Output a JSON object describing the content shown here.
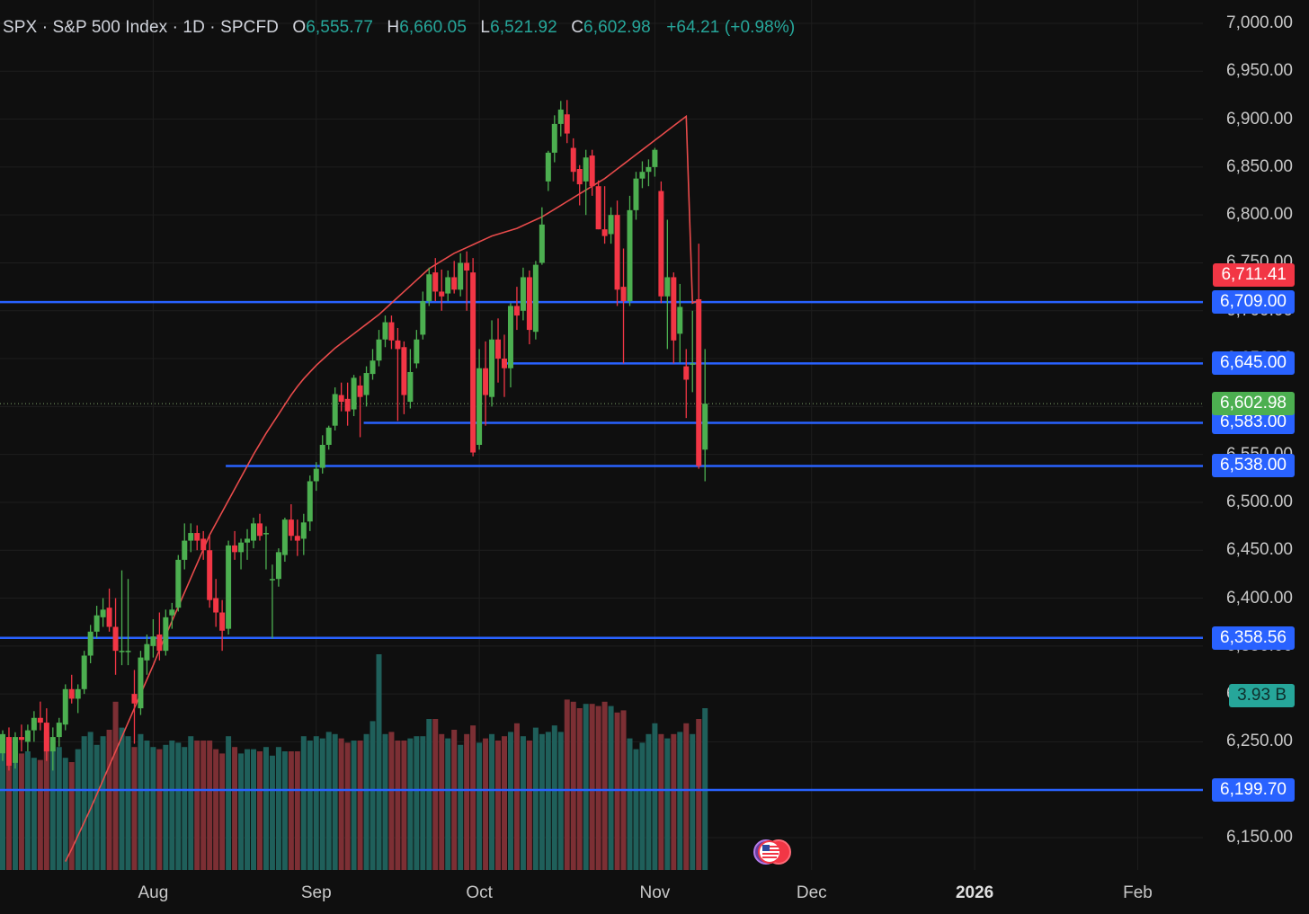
{
  "header": {
    "symbol": "SPX · S&P 500 Index · 1D · SPCFD",
    "open_label": "O",
    "open": "6,555.77",
    "high_label": "H",
    "high": "6,660.05",
    "low_label": "L",
    "low": "6,521.92",
    "close_label": "C",
    "close": "6,602.98",
    "change": "+64.21 (+0.98%)"
  },
  "colors": {
    "up": "#4caf50",
    "down": "#f23645",
    "ma": "#e84b4b",
    "hline": "#2962ff",
    "vol_up": "#1f5f5a",
    "vol_down": "#7c2f34"
  },
  "chart_data": {
    "type": "candlestick",
    "title": "",
    "ylim": [
      6120,
      7010
    ],
    "y_ticks": [
      6150,
      6200,
      6250,
      6300,
      6350,
      6400,
      6450,
      6500,
      6550,
      6600,
      6650,
      6700,
      6750,
      6800,
      6850,
      6900,
      6950,
      7000
    ],
    "y_tick_labels": [
      "6,150.00",
      "6,200.00",
      "6,250.00",
      "6,300.00",
      "6,350.00",
      "6,400.00",
      "6,450.00",
      "6,500.00",
      "6,550.00",
      "6,600.00",
      "6,650.00",
      "6,700.00",
      "6,750.00",
      "6,800.00",
      "6,850.00",
      "6,900.00",
      "6,950.00",
      "7,000.00"
    ],
    "x_labels": [
      "Aug",
      "Sep",
      "Oct",
      "Nov",
      "Dec",
      "2026",
      "Feb"
    ],
    "x_label_days": [
      24,
      50,
      76,
      104,
      129,
      155,
      181
    ],
    "candles": [
      [
        6238,
        6262,
        6230,
        6258
      ],
      [
        6255,
        6265,
        6220,
        6225
      ],
      [
        6228,
        6260,
        6222,
        6255
      ],
      [
        6255,
        6268,
        6240,
        6252
      ],
      [
        6250,
        6268,
        6240,
        6262
      ],
      [
        6262,
        6282,
        6250,
        6275
      ],
      [
        6275,
        6292,
        6262,
        6270
      ],
      [
        6270,
        6285,
        6230,
        6240
      ],
      [
        6240,
        6265,
        6220,
        6255
      ],
      [
        6255,
        6275,
        6245,
        6270
      ],
      [
        6268,
        6310,
        6262,
        6305
      ],
      [
        6305,
        6320,
        6290,
        6295
      ],
      [
        6295,
        6310,
        6280,
        6305
      ],
      [
        6305,
        6345,
        6300,
        6340
      ],
      [
        6340,
        6372,
        6332,
        6365
      ],
      [
        6365,
        6392,
        6358,
        6382
      ],
      [
        6380,
        6400,
        6370,
        6388
      ],
      [
        6390,
        6410,
        6365,
        6370
      ],
      [
        6370,
        6400,
        6320,
        6345
      ],
      [
        6345,
        6429,
        6330,
        6345
      ],
      [
        6345,
        6420,
        6330,
        6345
      ],
      [
        6300,
        6325,
        6248,
        6290
      ],
      [
        6285,
        6345,
        6278,
        6338
      ],
      [
        6335,
        6362,
        6320,
        6352
      ],
      [
        6350,
        6378,
        6338,
        6360
      ],
      [
        6362,
        6385,
        6335,
        6345
      ],
      [
        6345,
        6388,
        6340,
        6380
      ],
      [
        6382,
        6395,
        6368,
        6388
      ],
      [
        6390,
        6445,
        6386,
        6440
      ],
      [
        6440,
        6478,
        6430,
        6460
      ],
      [
        6460,
        6478,
        6448,
        6468
      ],
      [
        6468,
        6476,
        6450,
        6460
      ],
      [
        6462,
        6470,
        6440,
        6450
      ],
      [
        6450,
        6466,
        6390,
        6398
      ],
      [
        6400,
        6420,
        6370,
        6385
      ],
      [
        6385,
        6398,
        6345,
        6366
      ],
      [
        6368,
        6460,
        6362,
        6455
      ],
      [
        6455,
        6470,
        6440,
        6448
      ],
      [
        6448,
        6462,
        6430,
        6458
      ],
      [
        6458,
        6472,
        6440,
        6462
      ],
      [
        6460,
        6484,
        6452,
        6478
      ],
      [
        6478,
        6488,
        6460,
        6465
      ],
      [
        6468,
        6475,
        6430,
        6468
      ],
      [
        6420,
        6435,
        6358,
        6420
      ],
      [
        6420,
        6452,
        6412,
        6448
      ],
      [
        6445,
        6484,
        6438,
        6482
      ],
      [
        6482,
        6498,
        6460,
        6465
      ],
      [
        6465,
        6482,
        6444,
        6460
      ],
      [
        6462,
        6488,
        6445,
        6479
      ],
      [
        6480,
        6528,
        6470,
        6522
      ],
      [
        6522,
        6542,
        6512,
        6535
      ],
      [
        6536,
        6570,
        6530,
        6560
      ],
      [
        6560,
        6580,
        6555,
        6578
      ],
      [
        6580,
        6620,
        6575,
        6613
      ],
      [
        6612,
        6625,
        6595,
        6605
      ],
      [
        6608,
        6625,
        6580,
        6595
      ],
      [
        6597,
        6633,
        6590,
        6630
      ],
      [
        6622,
        6632,
        6568,
        6610
      ],
      [
        6612,
        6642,
        6600,
        6635
      ],
      [
        6634,
        6660,
        6628,
        6648
      ],
      [
        6648,
        6680,
        6642,
        6670
      ],
      [
        6670,
        6695,
        6662,
        6688
      ],
      [
        6688,
        6695,
        6660,
        6669
      ],
      [
        6669,
        6682,
        6585,
        6660
      ],
      [
        6662,
        6668,
        6592,
        6612
      ],
      [
        6605,
        6660,
        6598,
        6636
      ],
      [
        6645,
        6680,
        6640,
        6670
      ],
      [
        6675,
        6720,
        6670,
        6710
      ],
      [
        6710,
        6745,
        6705,
        6738
      ],
      [
        6740,
        6755,
        6710,
        6720
      ],
      [
        6720,
        6743,
        6700,
        6715
      ],
      [
        6718,
        6742,
        6710,
        6735
      ],
      [
        6735,
        6752,
        6718,
        6722
      ],
      [
        6722,
        6760,
        6715,
        6750
      ],
      [
        6750,
        6762,
        6700,
        6742
      ],
      [
        6740,
        6755,
        6548,
        6552
      ],
      [
        6560,
        6660,
        6555,
        6640
      ],
      [
        6640,
        6668,
        6580,
        6612
      ],
      [
        6610,
        6690,
        6600,
        6670
      ],
      [
        6670,
        6692,
        6625,
        6650
      ],
      [
        6650,
        6675,
        6610,
        6640
      ],
      [
        6640,
        6708,
        6620,
        6705
      ],
      [
        6705,
        6725,
        6680,
        6695
      ],
      [
        6700,
        6745,
        6690,
        6735
      ],
      [
        6735,
        6742,
        6665,
        6680
      ],
      [
        6678,
        6752,
        6670,
        6748
      ],
      [
        6750,
        6808,
        6748,
        6790
      ],
      [
        6835,
        6867,
        6825,
        6865
      ],
      [
        6865,
        6904,
        6855,
        6895
      ],
      [
        6895,
        6919,
        6882,
        6910
      ],
      [
        6905,
        6920,
        6875,
        6885
      ],
      [
        6870,
        6880,
        6835,
        6845
      ],
      [
        6848,
        6852,
        6810,
        6832
      ],
      [
        6835,
        6868,
        6800,
        6860
      ],
      [
        6862,
        6868,
        6820,
        6830
      ],
      [
        6830,
        6836,
        6785,
        6785
      ],
      [
        6785,
        6830,
        6770,
        6778
      ],
      [
        6780,
        6808,
        6770,
        6800
      ],
      [
        6800,
        6815,
        6705,
        6722
      ],
      [
        6725,
        6765,
        6645,
        6710
      ],
      [
        6710,
        6820,
        6705,
        6805
      ],
      [
        6805,
        6845,
        6795,
        6838
      ],
      [
        6838,
        6856,
        6828,
        6845
      ],
      [
        6845,
        6858,
        6830,
        6850
      ],
      [
        6850,
        6870,
        6840,
        6868
      ],
      [
        6825,
        6835,
        6708,
        6715
      ],
      [
        6715,
        6795,
        6660,
        6735
      ],
      [
        6735,
        6740,
        6645,
        6669
      ],
      [
        6676,
        6728,
        6646,
        6704
      ],
      [
        6642,
        6660,
        6588,
        6628
      ],
      [
        6645,
        6700,
        6615,
        6645
      ],
      [
        6712,
        6770,
        6535,
        6538
      ],
      [
        6555,
        6660,
        6522,
        6603
      ]
    ],
    "volume_rel": [
      0.62,
      0.56,
      0.55,
      0.54,
      0.55,
      0.52,
      0.51,
      0.64,
      0.56,
      0.57,
      0.52,
      0.5,
      0.56,
      0.62,
      0.64,
      0.58,
      0.62,
      0.65,
      0.78,
      0.66,
      0.62,
      0.57,
      0.63,
      0.6,
      0.57,
      0.56,
      0.58,
      0.6,
      0.59,
      0.57,
      0.62,
      0.6,
      0.6,
      0.6,
      0.56,
      0.54,
      0.62,
      0.57,
      0.54,
      0.56,
      0.56,
      0.55,
      0.57,
      0.53,
      0.57,
      0.55,
      0.55,
      0.55,
      0.62,
      0.6,
      0.62,
      0.61,
      0.64,
      0.63,
      0.61,
      0.59,
      0.6,
      0.6,
      0.63,
      0.69,
      1.0,
      0.63,
      0.64,
      0.6,
      0.6,
      0.61,
      0.62,
      0.62,
      0.7,
      0.7,
      0.63,
      0.61,
      0.65,
      0.58,
      0.63,
      0.67,
      0.59,
      0.61,
      0.63,
      0.6,
      0.62,
      0.64,
      0.68,
      0.62,
      0.6,
      0.66,
      0.63,
      0.64,
      0.67,
      0.64,
      0.79,
      0.78,
      0.75,
      0.77,
      0.77,
      0.76,
      0.78,
      0.76,
      0.73,
      0.74,
      0.61,
      0.56,
      0.59,
      0.63,
      0.68,
      0.63,
      0.61,
      0.63,
      0.64,
      0.68,
      0.63,
      0.7,
      0.75,
      0.71
    ],
    "moving_average": {
      "start_day": 10,
      "values": [
        6125,
        6138,
        6152,
        6166,
        6180,
        6195,
        6210,
        6225,
        6240,
        6255,
        6270,
        6285,
        6300,
        6315,
        6330,
        6346,
        6361,
        6376,
        6391,
        6406,
        6421,
        6436,
        6451,
        6466,
        6478,
        6490,
        6502,
        6514,
        6526,
        6538,
        6550,
        6561,
        6572,
        6582,
        6592,
        6602,
        6612,
        6621,
        6629,
        6636,
        6643,
        6649,
        6655,
        6661,
        6666,
        6671,
        6676,
        6681,
        6686,
        6691,
        6696,
        6702,
        6708,
        6714,
        6720,
        6726,
        6732,
        6738,
        6744,
        6748,
        6752,
        6756,
        6760,
        6763,
        6766,
        6769,
        6772,
        6775,
        6778,
        6780,
        6782,
        6784,
        6786,
        6789,
        6792,
        6795,
        6798,
        6802,
        6806,
        6810,
        6814,
        6818,
        6822,
        6826,
        6830,
        6834,
        6838,
        6843,
        6848,
        6853,
        6858,
        6863,
        6868,
        6873,
        6878,
        6883,
        6888,
        6893,
        6898,
        6903,
        6708,
        6711
      ]
    },
    "horizontal_levels": [
      {
        "value": 6709.0,
        "label": "6,709.00",
        "start_day": 0
      },
      {
        "value": 6645.0,
        "label": "6,645.00",
        "start_day": 80
      },
      {
        "value": 6583.0,
        "label": "6,583.00",
        "start_day": 58
      },
      {
        "value": 6538.0,
        "label": "6,538.00",
        "start_day": 36
      },
      {
        "value": 6358.56,
        "label": "6,358.56",
        "start_day": 0
      },
      {
        "value": 6199.7,
        "label": "6,199.70",
        "start_day": 0
      }
    ],
    "price_tags": {
      "ma_value": "6,711.41",
      "last_close": "6,602.98",
      "volume": "3.93 B"
    },
    "grid": true
  }
}
